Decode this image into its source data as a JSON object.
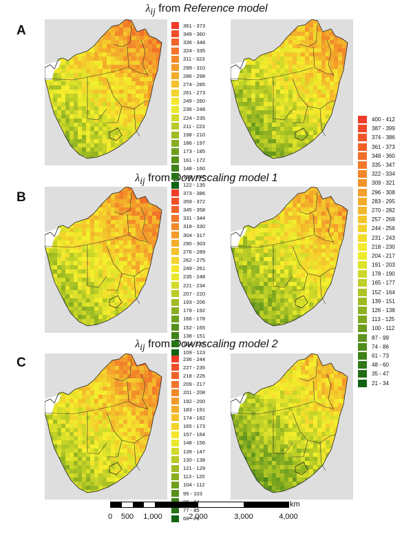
{
  "panels": [
    {
      "label": "A",
      "title": {
        "lambda": "λ",
        "sub": "ij",
        "from": " from ",
        "model": "Reference model"
      },
      "legend": [
        "361 - 373",
        "349 - 360",
        "336 - 348",
        "324 - 335",
        "311 - 323",
        "299 - 310",
        "286 - 298",
        "274 - 285",
        "261 - 273",
        "249 - 260",
        "236 - 248",
        "224 - 235",
        "211 - 223",
        "198 - 210",
        "186 - 197",
        "173 - 185",
        "161 - 172",
        "148 - 160",
        "136 - 147",
        "122 - 135"
      ]
    },
    {
      "label": "B",
      "title": {
        "lambda": "λ",
        "sub": "ij",
        "from": " from ",
        "model": "Downscaling model 1"
      },
      "legend": [
        "373 - 386",
        "359 - 372",
        "345 - 358",
        "331 - 344",
        "318 - 330",
        "304 - 317",
        "290 - 303",
        "276 - 289",
        "262 - 275",
        "249 - 261",
        "235 - 248",
        "221 - 234",
        "207 - 220",
        "193 - 206",
        "179 - 192",
        "166 - 178",
        "152 - 165",
        "138 - 151",
        "124 - 137",
        "109 - 123"
      ]
    },
    {
      "label": "C",
      "title": {
        "lambda": "λ",
        "sub": "ij",
        "from": " from ",
        "model": "Downscaling model 2"
      },
      "legend": [
        "236 - 244",
        "227 - 235",
        "218 - 226",
        "209 - 217",
        "201 - 208",
        "192 - 200",
        "183 - 191",
        "174 - 182",
        "165 - 173",
        "157 - 164",
        "148 - 156",
        "139 - 147",
        "130 - 138",
        "121 - 129",
        "113 - 120",
        "104 - 112",
        "95 - 103",
        "86 - 94",
        "77 - 85",
        "68 - 76"
      ]
    }
  ],
  "shared_legend": [
    "400 - 412",
    "387 - 399",
    "374 - 386",
    "361 - 373",
    "348 - 360",
    "335 - 347",
    "322 - 334",
    "309 - 321",
    "296 - 308",
    "283 - 295",
    "270 - 282",
    "257 - 269",
    "244 - 256",
    "231 - 243",
    "218 - 230",
    "204 - 217",
    "191 - 203",
    "178 - 190",
    "165 - 177",
    "152 - 164",
    "139 - 151",
    "126 - 138",
    "113 - 125",
    "100 - 112",
    "87 - 99",
    "74 - 86",
    "61 - 73",
    "48 - 60",
    "35 - 47",
    "21 - 34"
  ],
  "colors": {
    "ramp_high": "#f03c28",
    "ramp_mid": "#f5f02d",
    "ramp_low": "#0f6414",
    "map_background": "#dedede",
    "no_data_land": "#ffffff"
  },
  "scalebar": {
    "unit": "km",
    "ticks": [
      "0",
      "500",
      "1,000",
      "2,000",
      "3,000",
      "4,000"
    ]
  }
}
